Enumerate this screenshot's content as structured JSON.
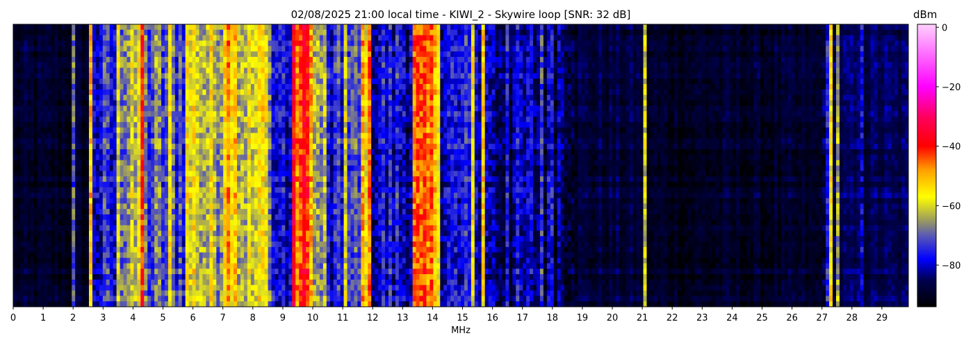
{
  "chart_data": {
    "type": "heatmap",
    "title": "02/08/2025 21:00 local time - KIWI_2 - Skywire loop [SNR: 32 dB]",
    "xlabel": "MHz",
    "ylabel": "",
    "xlim": [
      0,
      29.9
    ],
    "x_ticks": [
      "0",
      "1",
      "2",
      "3",
      "4",
      "5",
      "6",
      "7",
      "8",
      "9",
      "10",
      "11",
      "12",
      "13",
      "14",
      "15",
      "16",
      "17",
      "18",
      "19",
      "20",
      "21",
      "22",
      "23",
      "24",
      "25",
      "26",
      "27",
      "28",
      "29"
    ],
    "colorbar": {
      "label": "dBm",
      "range": [
        -94,
        1
      ],
      "ticks": [
        "0",
        "−20",
        "−40",
        "−60",
        "−80"
      ],
      "tick_values": [
        0,
        -20,
        -40,
        -60,
        -80
      ],
      "colormap": [
        [
          -94,
          "#000000"
        ],
        [
          -85,
          "#000050"
        ],
        [
          -78,
          "#0000ff"
        ],
        [
          -70,
          "#5a5ab4"
        ],
        [
          -65,
          "#9a9a60"
        ],
        [
          -57,
          "#ffff00"
        ],
        [
          -48,
          "#ffa000"
        ],
        [
          -40,
          "#ff0000"
        ],
        [
          -30,
          "#ff0060"
        ],
        [
          -20,
          "#ff00ff"
        ],
        [
          1,
          "#ffd0ff"
        ]
      ]
    },
    "band_levels_dbm": [
      [
        0,
        2.5,
        -90
      ],
      [
        2.5,
        3.5,
        -77
      ],
      [
        3.5,
        4.2,
        -64
      ],
      [
        4.2,
        4.35,
        -40
      ],
      [
        4.35,
        5.8,
        -71
      ],
      [
        5.8,
        6.2,
        -58
      ],
      [
        6.2,
        7.0,
        -62
      ],
      [
        7.0,
        7.5,
        -49
      ],
      [
        7.5,
        8.6,
        -61
      ],
      [
        8.6,
        9.3,
        -78
      ],
      [
        9.3,
        10.0,
        -43
      ],
      [
        10.0,
        10.5,
        -66
      ],
      [
        10.5,
        11.0,
        -78
      ],
      [
        11.0,
        11.1,
        -55
      ],
      [
        11.1,
        11.6,
        -74
      ],
      [
        11.6,
        12.0,
        -52
      ],
      [
        12.0,
        13.3,
        -78
      ],
      [
        13.3,
        14.3,
        -49
      ],
      [
        14.3,
        16.0,
        -79
      ],
      [
        16.0,
        18.8,
        -83
      ],
      [
        18.8,
        21.0,
        -88
      ],
      [
        21.0,
        27.0,
        -90
      ],
      [
        27.0,
        27.5,
        -81
      ],
      [
        27.5,
        29.9,
        -86
      ]
    ],
    "signal_lines_dbm": [
      [
        2.05,
        -74
      ],
      [
        2.6,
        -55
      ],
      [
        4.0,
        -58
      ],
      [
        5.2,
        -60
      ],
      [
        8.3,
        -56
      ],
      [
        11.05,
        -55
      ],
      [
        15.4,
        -52
      ],
      [
        15.7,
        -56
      ],
      [
        16.5,
        -74
      ],
      [
        17.6,
        -72
      ],
      [
        18.0,
        -74
      ],
      [
        21.05,
        -64
      ],
      [
        27.3,
        -60
      ],
      [
        27.55,
        -66
      ],
      [
        28.4,
        -74
      ]
    ]
  }
}
